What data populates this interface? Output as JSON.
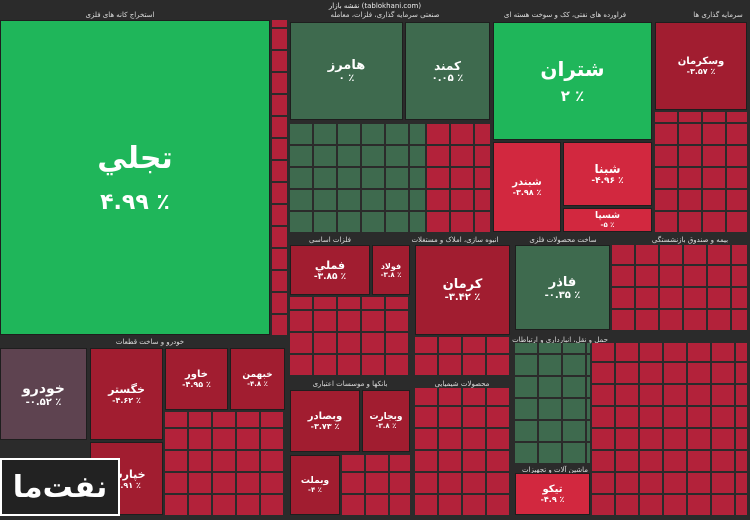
{
  "title": "نقشه بازار (tablokhani.com)",
  "sectors": [
    "استخراج کانه های فلزی",
    "صنعتی سرمایه گذاری، فلزات، معامله",
    "فراورده های نفتی، کک و سوخت هسته ای",
    "سرمایه گذاری ها",
    "فلزات اساسی",
    "انبوه سازی، املاک و مستغلات",
    "ساخت محصولات فلزی",
    "بیمه و صندوق بازنشستگی",
    "خودرو و ساخت قطعات",
    "بانکها و موسسات اعتباری",
    "محصولات شیمیایی",
    "حمل و نقل، انبارداری و ارتباطات",
    "ماشین آلات و تجهیزات"
  ],
  "tiles": [
    {
      "name": "تجلي",
      "change": "۴.۹۹ ٪"
    },
    {
      "name": "هامرز",
      "change": "۰ ٪"
    },
    {
      "name": "کمند",
      "change": "۰.۰۵ ٪"
    },
    {
      "name": "شتران",
      "change": "۲ ٪"
    },
    {
      "name": "شبنا",
      "change": "-۴.۹۶ ٪"
    },
    {
      "name": "شبندر",
      "change": "-۳.۹۸ ٪"
    },
    {
      "name": "شسپا",
      "change": "-۵ ٪"
    },
    {
      "name": "وسکرمان",
      "change": "-۳.۵۷ ٪"
    },
    {
      "name": "فملي",
      "change": "-۳.۸۵ ٪"
    },
    {
      "name": "فولاد",
      "change": "-۳.۸ ٪"
    },
    {
      "name": "کرمان",
      "change": "-۳.۴۲ ٪"
    },
    {
      "name": "فاذر",
      "change": "-۰.۳۵ ٪"
    },
    {
      "name": "خودرو",
      "change": "-۰.۵۲ ٪"
    },
    {
      "name": "خگستر",
      "change": "-۴.۶۲ ٪"
    },
    {
      "name": "خاور",
      "change": "-۴.۹۵ ٪"
    },
    {
      "name": "خبهمن",
      "change": "-۴.۸ ٪"
    },
    {
      "name": "خپارس",
      "change": "-۴.۹۱ ٪"
    },
    {
      "name": "وبصادر",
      "change": "-۳.۷۳ ٪"
    },
    {
      "name": "وبجارت",
      "change": "-۳.۸ ٪"
    },
    {
      "name": "وبملت",
      "change": "-۴ ٪"
    },
    {
      "name": "تیکو",
      "change": "-۴.۹ ٪"
    }
  ],
  "watermark": "نفت‌ما"
}
